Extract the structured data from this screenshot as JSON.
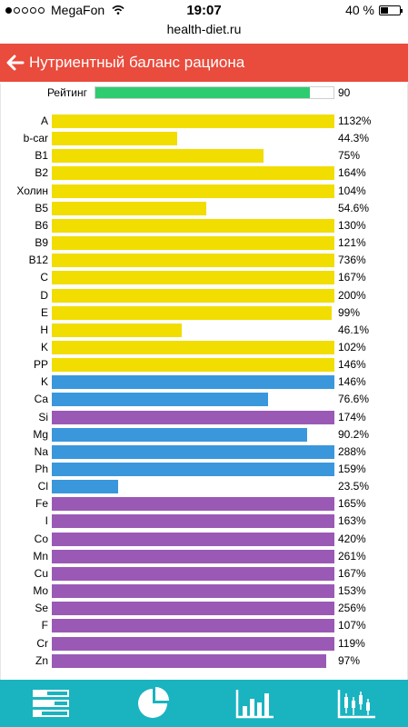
{
  "status_bar": {
    "carrier": "MegaFon",
    "time": "19:07",
    "battery": "40 %",
    "battery_level": 0.4
  },
  "browser": {
    "url": "health-diet.ru"
  },
  "header": {
    "title": "Нутриентный баланс рациона",
    "back_icon": "arrow-left-icon"
  },
  "rating": {
    "label": "Рейтинг",
    "value": "90",
    "fraction": 0.9,
    "color": "#2ecc71"
  },
  "colors": {
    "vitamin": "#f1dd00",
    "blue": "#3a97dc",
    "purple": "#9b59b6",
    "header": "#e94b3c",
    "nav": "#1ab3c0"
  },
  "chart_data": {
    "type": "bar",
    "orientation": "horizontal",
    "cap_percent": 100,
    "rows": [
      {
        "name": "A",
        "value": "1132%",
        "fraction": 1.0,
        "group": "vitamin"
      },
      {
        "name": "b-car",
        "value": "44.3%",
        "fraction": 0.443,
        "group": "vitamin"
      },
      {
        "name": "B1",
        "value": "75%",
        "fraction": 0.75,
        "group": "vitamin"
      },
      {
        "name": "B2",
        "value": "164%",
        "fraction": 1.0,
        "group": "vitamin"
      },
      {
        "name": "Холин",
        "value": "104%",
        "fraction": 1.0,
        "group": "vitamin"
      },
      {
        "name": "B5",
        "value": "54.6%",
        "fraction": 0.546,
        "group": "vitamin"
      },
      {
        "name": "B6",
        "value": "130%",
        "fraction": 1.0,
        "group": "vitamin"
      },
      {
        "name": "B9",
        "value": "121%",
        "fraction": 1.0,
        "group": "vitamin"
      },
      {
        "name": "B12",
        "value": "736%",
        "fraction": 1.0,
        "group": "vitamin"
      },
      {
        "name": "C",
        "value": "167%",
        "fraction": 1.0,
        "group": "vitamin"
      },
      {
        "name": "D",
        "value": "200%",
        "fraction": 1.0,
        "group": "vitamin"
      },
      {
        "name": "E",
        "value": "99%",
        "fraction": 0.99,
        "group": "vitamin"
      },
      {
        "name": "H",
        "value": "46.1%",
        "fraction": 0.461,
        "group": "vitamin"
      },
      {
        "name": "K",
        "value": "102%",
        "fraction": 1.0,
        "group": "vitamin"
      },
      {
        "name": "PP",
        "value": "146%",
        "fraction": 1.0,
        "group": "vitamin"
      },
      {
        "name": "K",
        "value": "146%",
        "fraction": 1.0,
        "group": "blue"
      },
      {
        "name": "Ca",
        "value": "76.6%",
        "fraction": 0.766,
        "group": "blue"
      },
      {
        "name": "Si",
        "value": "174%",
        "fraction": 1.0,
        "group": "purple"
      },
      {
        "name": "Mg",
        "value": "90.2%",
        "fraction": 0.902,
        "group": "blue"
      },
      {
        "name": "Na",
        "value": "288%",
        "fraction": 1.0,
        "group": "blue"
      },
      {
        "name": "Ph",
        "value": "159%",
        "fraction": 1.0,
        "group": "blue"
      },
      {
        "name": "Cl",
        "value": "23.5%",
        "fraction": 0.235,
        "group": "blue"
      },
      {
        "name": "Fe",
        "value": "165%",
        "fraction": 1.0,
        "group": "purple"
      },
      {
        "name": "I",
        "value": "163%",
        "fraction": 1.0,
        "group": "purple"
      },
      {
        "name": "Co",
        "value": "420%",
        "fraction": 1.0,
        "group": "purple"
      },
      {
        "name": "Mn",
        "value": "261%",
        "fraction": 1.0,
        "group": "purple"
      },
      {
        "name": "Cu",
        "value": "167%",
        "fraction": 1.0,
        "group": "purple"
      },
      {
        "name": "Mo",
        "value": "153%",
        "fraction": 1.0,
        "group": "purple"
      },
      {
        "name": "Se",
        "value": "256%",
        "fraction": 1.0,
        "group": "purple"
      },
      {
        "name": "F",
        "value": "107%",
        "fraction": 1.0,
        "group": "purple"
      },
      {
        "name": "Cr",
        "value": "119%",
        "fraction": 1.0,
        "group": "purple"
      },
      {
        "name": "Zn",
        "value": "97%",
        "fraction": 0.97,
        "group": "purple"
      }
    ]
  },
  "bottom_nav": [
    {
      "icon": "list-bars-icon"
    },
    {
      "icon": "pie-chart-icon"
    },
    {
      "icon": "bar-chart-icon"
    },
    {
      "icon": "candlestick-chart-icon"
    }
  ]
}
